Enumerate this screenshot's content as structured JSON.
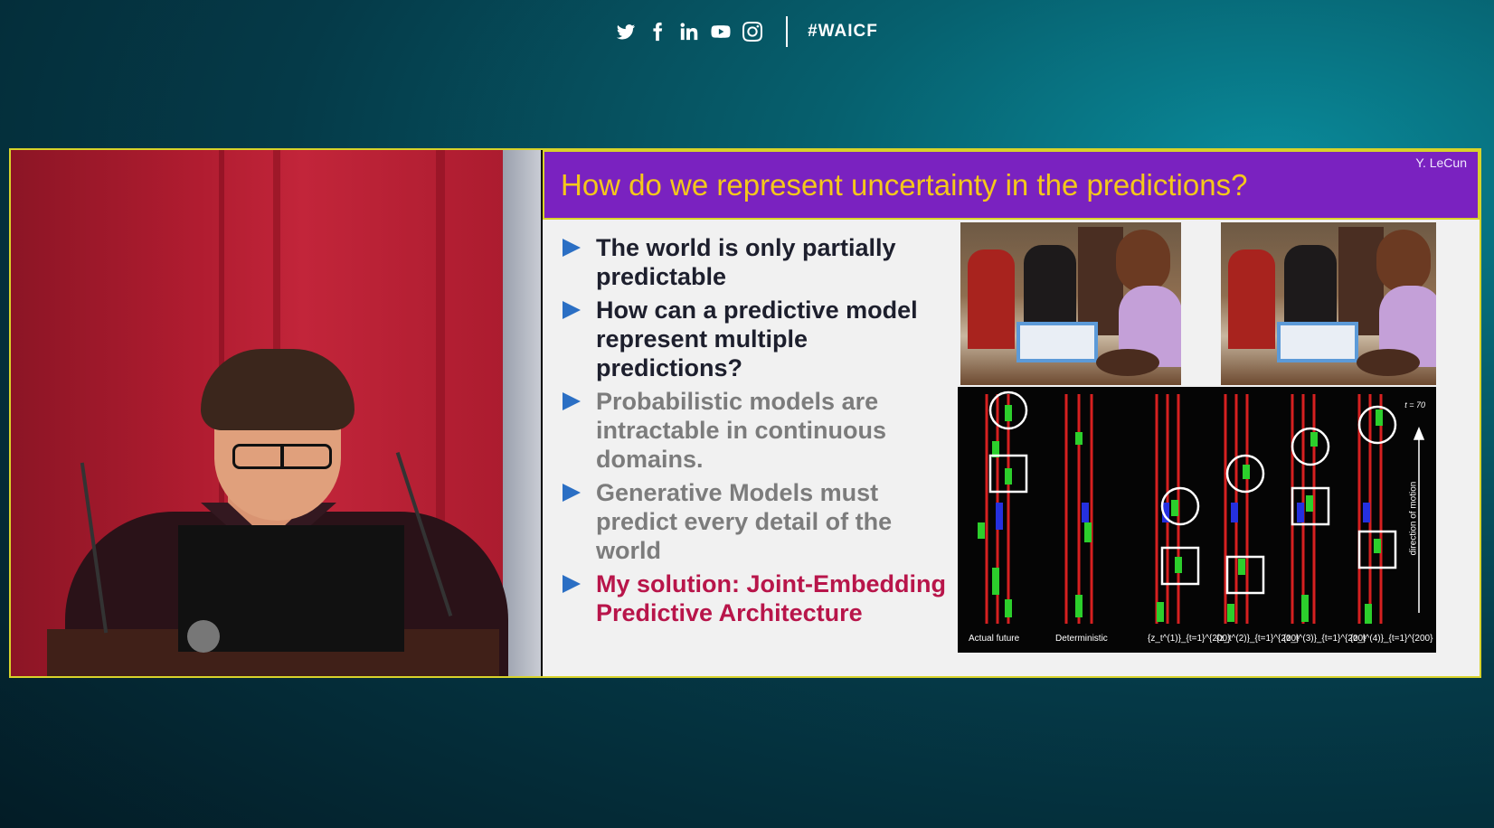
{
  "topbar": {
    "social_icons": [
      "twitter-icon",
      "facebook-icon",
      "linkedin-icon",
      "youtube-icon",
      "instagram-icon"
    ],
    "hashtag": "#WAICF"
  },
  "slide": {
    "title": "How do we represent uncertainty in the predictions?",
    "author": "Y. LeCun",
    "bullets": [
      {
        "text": "The world is only partially predictable",
        "tone": "dark"
      },
      {
        "text": "How can a predictive model represent multiple predictions?",
        "tone": "dark"
      },
      {
        "text": "Probabilistic models are intractable in continuous domains.",
        "tone": "gray"
      },
      {
        "text": "Generative Models must predict every detail of the world",
        "tone": "gray"
      },
      {
        "text": "My solution: Joint-Embedding Predictive Architecture",
        "tone": "red"
      }
    ],
    "figure": {
      "panel_labels": [
        "Actual future",
        "Deterministic",
        "{z_t^(1)}_{t=1}^{200}",
        "{z_t^(2)}_{t=1}^{200}",
        "{z_t^(3)}_{t=1}^{200}",
        "{z_t^(4)}_{t=1}^{200}"
      ],
      "time_label": "t = 70",
      "axis_label": "direction of motion"
    }
  },
  "colors": {
    "frame_border": "#d8d32a",
    "title_bar": "#7a22c0",
    "title_text": "#f5c81a",
    "bullet_arrow": "#2b6fc4",
    "highlight_bullet": "#b8154a"
  }
}
